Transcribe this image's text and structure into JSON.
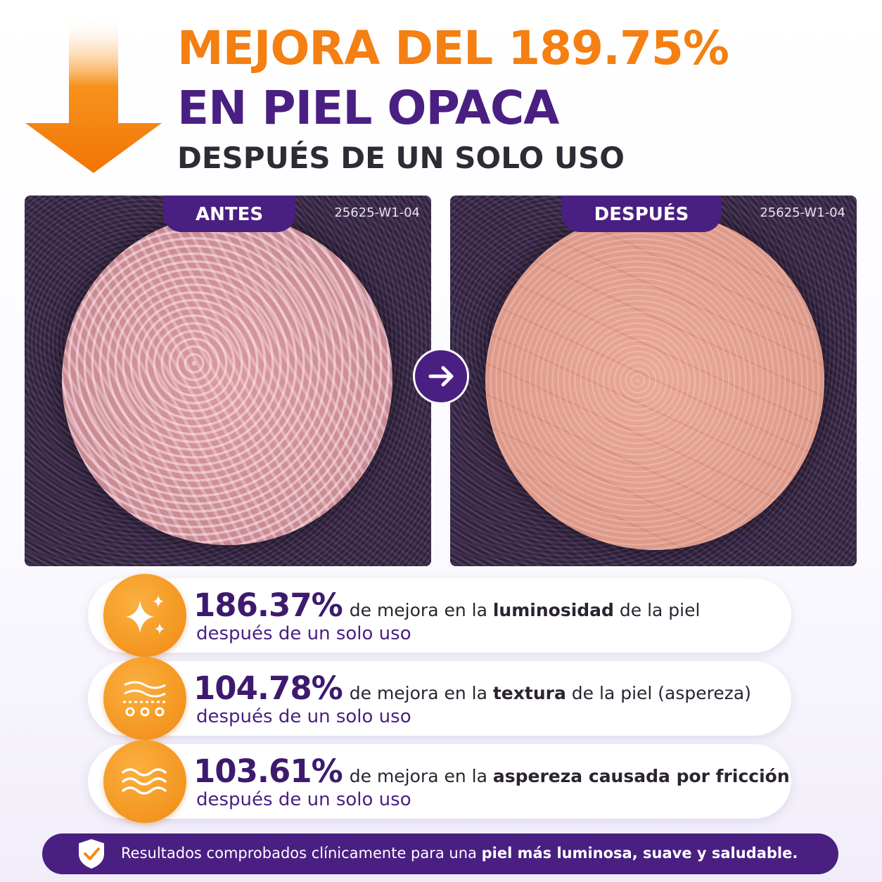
{
  "header": {
    "title_prefix": "MEJORA DEL",
    "title_value": "189.75%",
    "title_line2": "EN PIEL OPACA",
    "subtitle": "DESPUÉS DE UN SOLO USO"
  },
  "panels": [
    {
      "label": "ANTES",
      "code": "25625-W1-04"
    },
    {
      "label": "DESPUÉS",
      "code": "25625-W1-04"
    }
  ],
  "stats": [
    {
      "value": "186.37%",
      "text_before": "de mejora en la",
      "highlight": "luminosidad",
      "text_after": "de la piel",
      "note": "después de un solo uso"
    },
    {
      "value": "104.78%",
      "text_before": "de mejora en la",
      "highlight": "textura",
      "text_after": "de la piel (aspereza)",
      "note": "después de un solo uso"
    },
    {
      "value": "103.61%",
      "text_before": "de mejora en la",
      "highlight": "aspereza causada por fricción",
      "note": "después de un solo uso"
    }
  ],
  "footer": {
    "text": "Resultados comprobados clínicamente para una",
    "highlight": "piel más luminosa, suave y saludable."
  }
}
